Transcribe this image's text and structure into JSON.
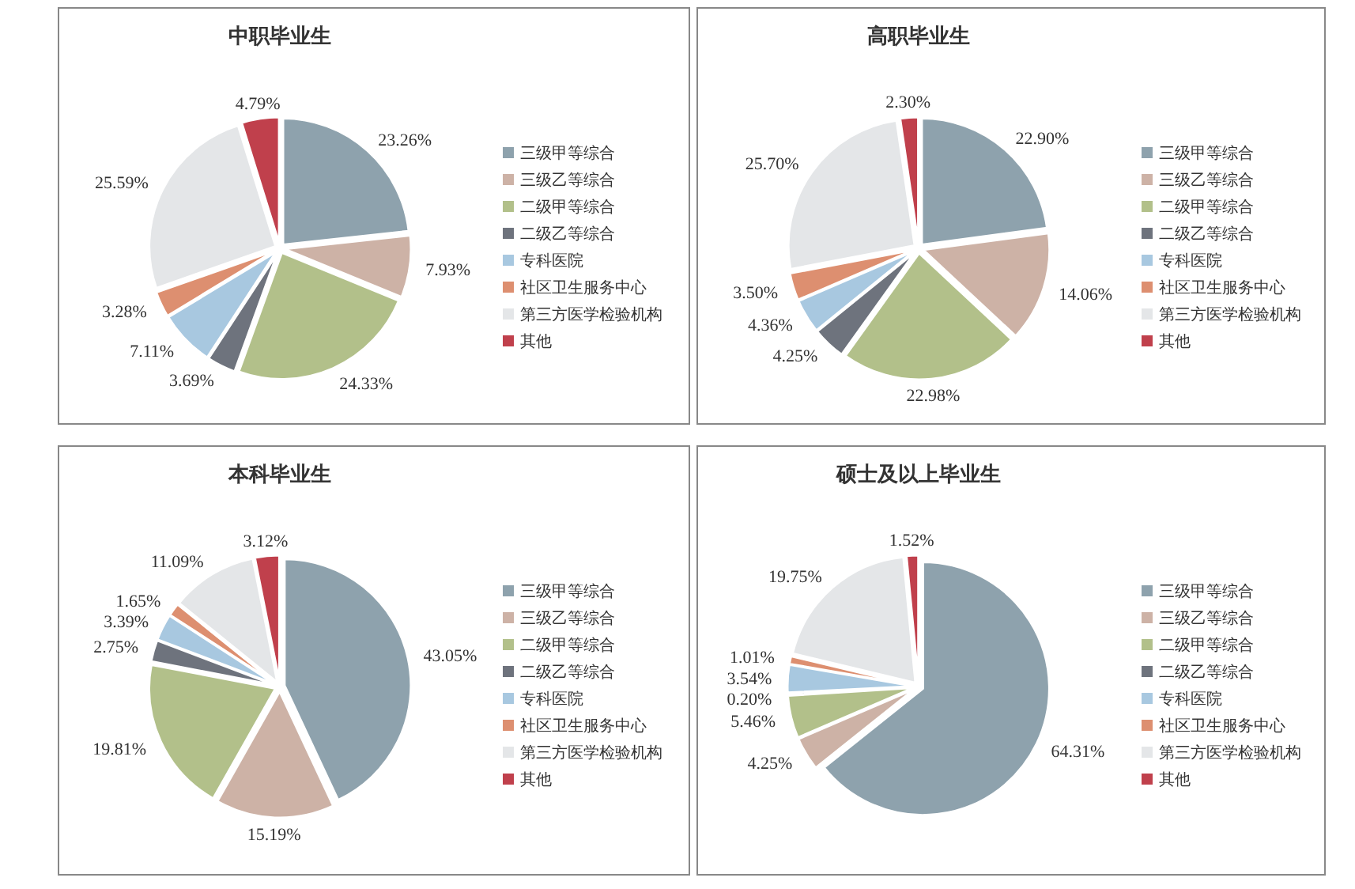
{
  "chart_data": [
    {
      "type": "pie",
      "title": "中职毕业生",
      "categories": [
        "三级甲等综合",
        "三级乙等综合",
        "二级甲等综合",
        "二级乙等综合",
        "专科医院",
        "社区卫生服务中心",
        "第三方医学检验机构",
        "其他"
      ],
      "values": [
        23.26,
        7.93,
        24.33,
        3.69,
        7.11,
        3.28,
        25.59,
        4.79
      ],
      "value_labels": [
        "23.26%",
        "7.93%",
        "24.33%",
        "3.69%",
        "7.11%",
        "3.28%",
        "25.59%",
        "4.79%"
      ],
      "colors": [
        "#8ea2ad",
        "#cdb2a6",
        "#b2c08a",
        "#6e737d",
        "#a8c8e0",
        "#dd8f70",
        "#e4e6e8",
        "#c0404c"
      ],
      "legend": "right"
    },
    {
      "type": "pie",
      "title": "高职毕业生",
      "categories": [
        "三级甲等综合",
        "三级乙等综合",
        "二级甲等综合",
        "二级乙等综合",
        "专科医院",
        "社区卫生服务中心",
        "第三方医学检验机构",
        "其他"
      ],
      "values": [
        22.9,
        14.06,
        22.98,
        4.25,
        4.36,
        3.5,
        25.7,
        2.3
      ],
      "value_labels": [
        "22.90%",
        "14.06%",
        "22.98%",
        "4.25%",
        "4.36%",
        "3.50%",
        "25.70%",
        "2.30%"
      ],
      "colors": [
        "#8ea2ad",
        "#cdb2a6",
        "#b2c08a",
        "#6e737d",
        "#a8c8e0",
        "#dd8f70",
        "#e4e6e8",
        "#c0404c"
      ],
      "legend": "right"
    },
    {
      "type": "pie",
      "title": "本科毕业生",
      "categories": [
        "三级甲等综合",
        "三级乙等综合",
        "二级甲等综合",
        "二级乙等综合",
        "专科医院",
        "社区卫生服务中心",
        "第三方医学检验机构",
        "其他"
      ],
      "values": [
        43.05,
        15.19,
        19.81,
        2.75,
        3.39,
        1.65,
        11.09,
        3.12
      ],
      "value_labels": [
        "43.05%",
        "15.19%",
        "19.81%",
        "2.75%",
        "3.39%",
        "1.65%",
        "11.09%",
        "3.12%"
      ],
      "colors": [
        "#8ea2ad",
        "#cdb2a6",
        "#b2c08a",
        "#6e737d",
        "#a8c8e0",
        "#dd8f70",
        "#e4e6e8",
        "#c0404c"
      ],
      "legend": "right"
    },
    {
      "type": "pie",
      "title": "硕士及以上毕业生",
      "categories": [
        "三级甲等综合",
        "三级乙等综合",
        "二级甲等综合",
        "二级乙等综合",
        "专科医院",
        "社区卫生服务中心",
        "第三方医学检验机构",
        "其他"
      ],
      "values": [
        64.31,
        4.25,
        5.46,
        0.2,
        3.54,
        1.01,
        19.75,
        1.52
      ],
      "value_labels": [
        "64.31%",
        "4.25%",
        "5.46%",
        "0.20%",
        "3.54%",
        "1.01%",
        "19.75%",
        "1.52%"
      ],
      "colors": [
        "#8ea2ad",
        "#cdb2a6",
        "#b2c08a",
        "#6e737d",
        "#a8c8e0",
        "#dd8f70",
        "#e4e6e8",
        "#c0404c"
      ],
      "legend": "right"
    }
  ]
}
